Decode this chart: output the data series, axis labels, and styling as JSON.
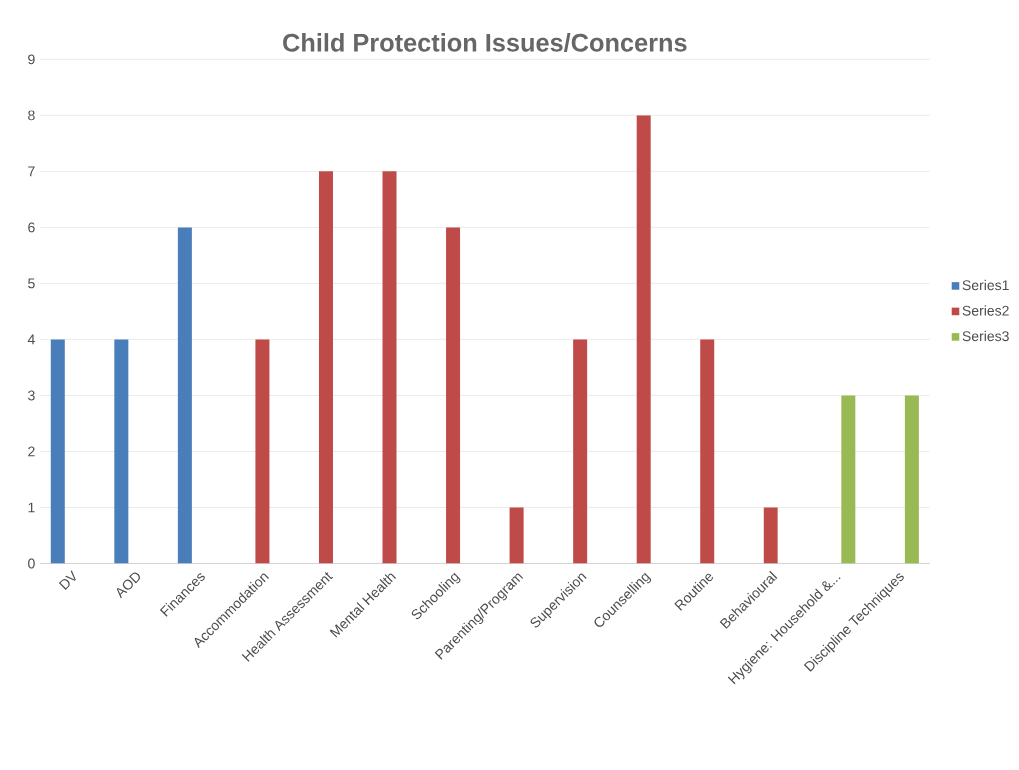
{
  "chart_data": {
    "type": "bar",
    "title": "Child Protection Issues/Concerns",
    "categories": [
      "DV",
      "AOD",
      "Finances",
      "Accommodation",
      "Health Assessment",
      "Mental Health",
      "Schooling",
      "Parenting/Program",
      "Supervision",
      "Counselling",
      "Routine",
      "Behavioural",
      "Hygiene: Household &...",
      "Discipline Techniques"
    ],
    "series": [
      {
        "name": "Series1",
        "color": "#4a7ebb",
        "values": [
          4,
          4,
          6,
          null,
          null,
          null,
          null,
          null,
          null,
          null,
          null,
          null,
          null,
          null
        ]
      },
      {
        "name": "Series2",
        "color": "#be4b48",
        "values": [
          null,
          null,
          null,
          4,
          7,
          7,
          6,
          1,
          4,
          8,
          4,
          1,
          null,
          null
        ]
      },
      {
        "name": "Series3",
        "color": "#98b954",
        "values": [
          null,
          null,
          null,
          null,
          null,
          null,
          null,
          null,
          null,
          null,
          null,
          null,
          3,
          3
        ]
      }
    ],
    "ylim": [
      0,
      9
    ],
    "yticks": [
      0,
      1,
      2,
      3,
      4,
      5,
      6,
      7,
      8,
      9
    ],
    "grid": "y",
    "legend": "right"
  }
}
